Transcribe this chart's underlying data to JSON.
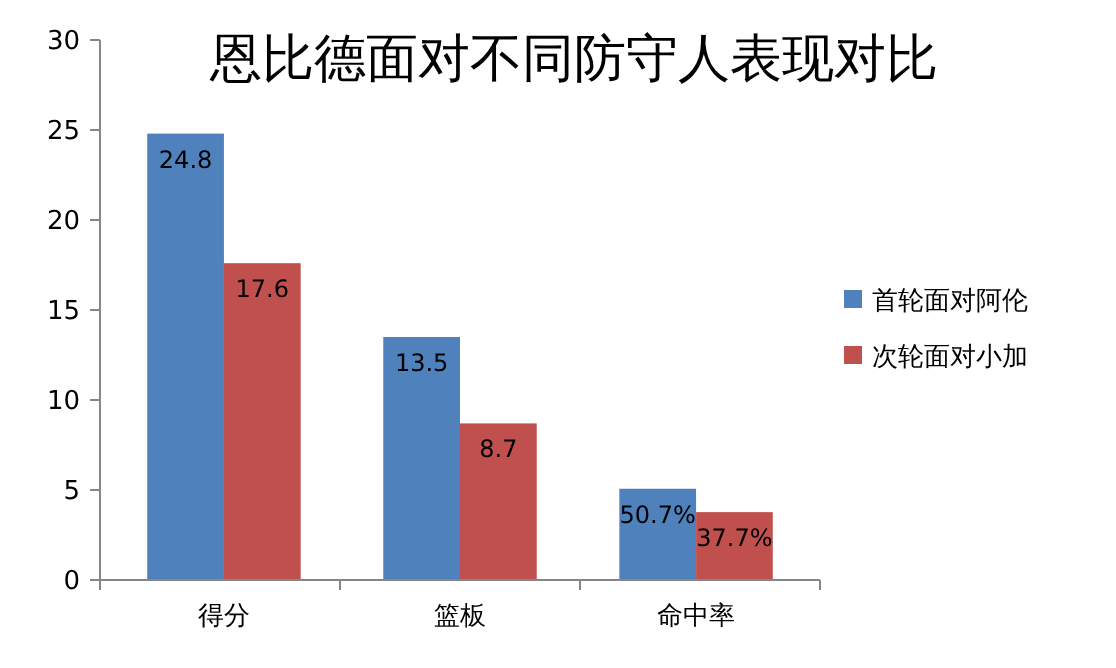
{
  "chart_data": {
    "type": "bar",
    "title": "恩比德面对不同防守人表现对比",
    "categories": [
      "得分",
      "篮板",
      "命中率"
    ],
    "series": [
      {
        "name": "首轮面对阿伦",
        "color": "#4f81bd",
        "values": [
          24.8,
          13.5,
          5.07
        ],
        "value_labels": [
          "24.8",
          "13.5",
          null
        ]
      },
      {
        "name": "次轮面对小加",
        "color": "#c0504d",
        "values": [
          17.6,
          8.7,
          3.77
        ],
        "value_labels": [
          "17.6",
          "8.7",
          null
        ]
      }
    ],
    "annotations": [
      {
        "text": "50.7%",
        "x": "命中率",
        "y": 5.07
      },
      {
        "text": "37.7%",
        "x": "命中率",
        "y": 3.77
      }
    ],
    "ylim": [
      0,
      30
    ],
    "yticks": [
      0,
      5,
      10,
      15,
      20,
      25,
      30
    ],
    "grid": false,
    "legend": "right"
  }
}
